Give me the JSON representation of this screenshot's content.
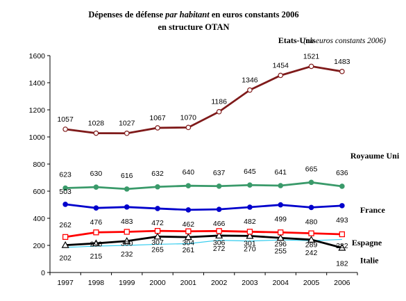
{
  "chart_data": {
    "type": "line",
    "title": "Dépenses de défense par habitant en euros constants 2006",
    "title_parts": {
      "line1_a": "Dépenses de défense ",
      "line1_b": "par habitant",
      "line1_c": " en euros constants 2006",
      "line2": "en structure OTAN"
    },
    "unit_note": "(en euros constants 2006)",
    "x": [
      "1997",
      "1998",
      "1999",
      "2000",
      "2001",
      "2002",
      "2003",
      "2004",
      "2005",
      "2006"
    ],
    "ylim": [
      0,
      1600
    ],
    "yticks": [
      0,
      200,
      400,
      600,
      800,
      1000,
      1200,
      1400,
      1600
    ],
    "xlabel": "",
    "ylabel": "",
    "grid": false,
    "legend": "inline labels at right end of each line",
    "series": [
      {
        "name": "Etats-Unis",
        "color": "#7f1a1a",
        "marker": "circle",
        "marker_fill": "#ffffff",
        "values": [
          1057,
          1028,
          1027,
          1067,
          1070,
          1186,
          1346,
          1454,
          1521,
          1483
        ],
        "labels": [
          "1057",
          "1028",
          "1027",
          "1067",
          "1070",
          "1186",
          "1346",
          "1454",
          "1521",
          "1483"
        ]
      },
      {
        "name": "Royaume Uni",
        "color": "#3a9a6a",
        "marker": "circle",
        "marker_fill": "#3a9a6a",
        "values": [
          623,
          630,
          616,
          632,
          640,
          637,
          645,
          641,
          665,
          636
        ],
        "labels": [
          "623",
          "630",
          "616",
          "632",
          "640",
          "637",
          "645",
          "641",
          "665",
          "636"
        ]
      },
      {
        "name": "France",
        "color": "#0000cc",
        "marker": "circle",
        "marker_fill": "#0000cc",
        "values": [
          503,
          476,
          483,
          472,
          462,
          466,
          482,
          499,
          480,
          493
        ],
        "labels": [
          "503",
          "476",
          "483",
          "472",
          "462",
          "466",
          "482",
          "499",
          "480",
          "493"
        ]
      },
      {
        "name": "Espagne",
        "color": "#ff0000",
        "marker": "square",
        "marker_fill": "#ffffff",
        "values": [
          262,
          296,
          300,
          307,
          304,
          306,
          301,
          296,
          289,
          282
        ],
        "labels": [
          "262",
          "296",
          "300",
          "307",
          "304",
          "306",
          "301",
          "296",
          "289",
          "282"
        ]
      },
      {
        "name": "Italie",
        "color": "#000000",
        "marker": "triangle",
        "marker_fill": "#ffffff",
        "values": [
          202,
          215,
          232,
          265,
          261,
          272,
          270,
          255,
          242,
          182
        ],
        "labels": [
          "202",
          "215",
          "232",
          "265",
          "261",
          "272",
          "270",
          "255",
          "242",
          "182"
        ]
      },
      {
        "name": "",
        "color": "#33ccee",
        "marker": "none",
        "marker_fill": "#33ccee",
        "values": [
          185,
          195,
          200,
          208,
          213,
          238,
          232,
          240,
          235,
          244
        ],
        "labels": []
      }
    ]
  }
}
